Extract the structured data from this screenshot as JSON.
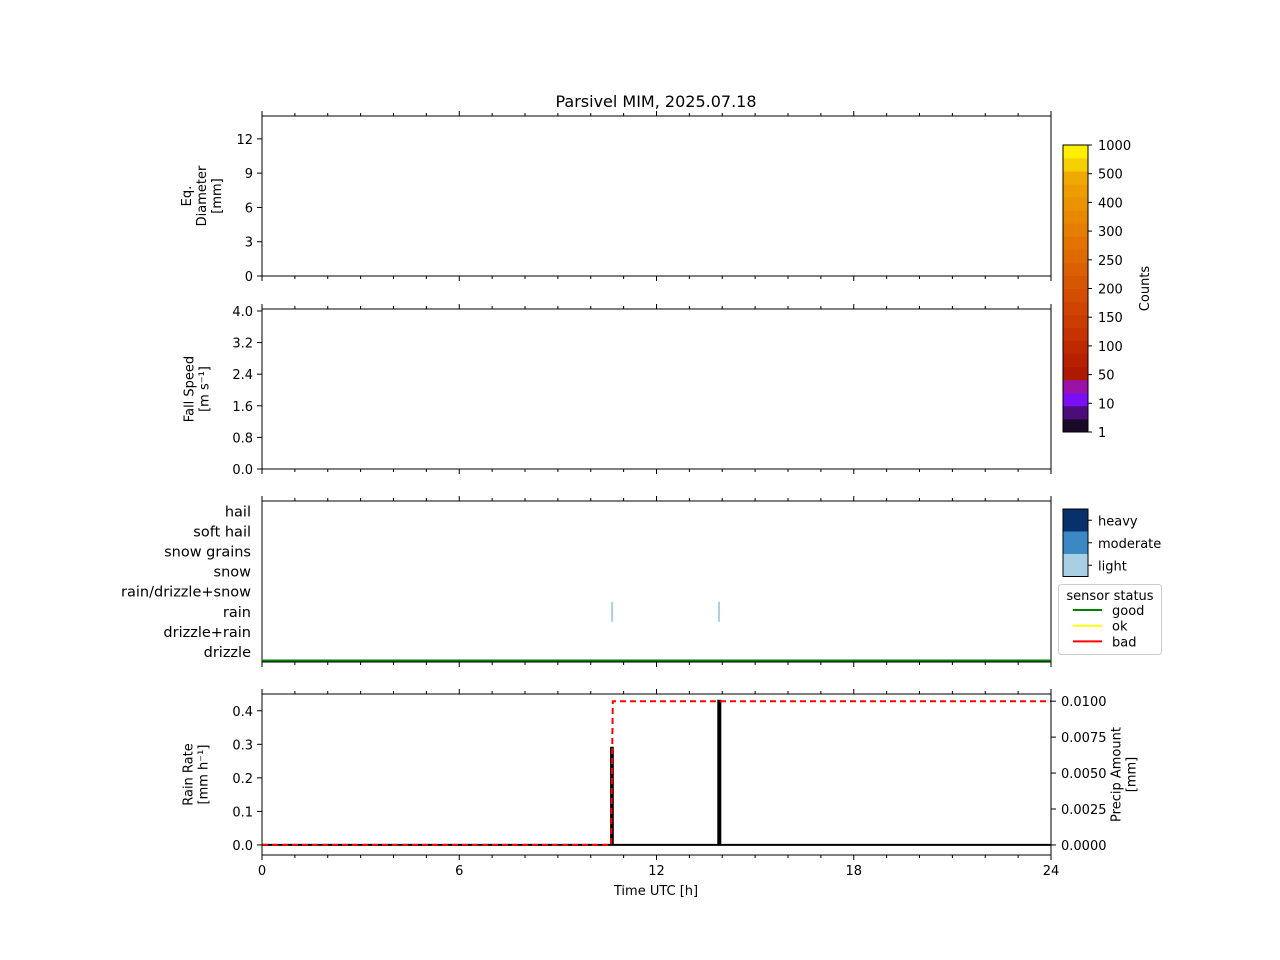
{
  "chart_data": {
    "title": "Parsivel MIM, 2025.07.18",
    "x_axis": {
      "label": "Time UTC [h]",
      "range": [
        0,
        24
      ],
      "ticks": [
        0,
        6,
        12,
        18,
        24
      ],
      "minor_step": 1
    },
    "panels": [
      {
        "id": "diameter",
        "type": "heatmap",
        "ylabel_lines": [
          "Eq.",
          "Diameter",
          "[mm]"
        ],
        "ylim": [
          0,
          14
        ],
        "yticks": [
          0,
          3,
          6,
          9,
          12
        ],
        "values": []
      },
      {
        "id": "fall_speed",
        "type": "heatmap",
        "ylabel_lines": [
          "Fall Speed",
          "[m s⁻¹]"
        ],
        "ylim": [
          0,
          4.05
        ],
        "yticks": [
          "0.0",
          "0.8",
          "1.6",
          "2.4",
          "3.2",
          "4.0"
        ],
        "values": []
      },
      {
        "id": "precip_type",
        "type": "category",
        "categories": [
          "drizzle",
          "drizzle+rain",
          "rain",
          "rain/drizzle+snow",
          "snow",
          "snow grains",
          "soft hail",
          "hail"
        ],
        "events": [
          {
            "time": 10.65,
            "category": "rain",
            "intensity": "light"
          },
          {
            "time": 13.9,
            "category": "rain",
            "intensity": "light"
          }
        ],
        "sensor_status": [
          {
            "from": 0,
            "to": 24,
            "status": "good"
          }
        ]
      },
      {
        "id": "rain",
        "type": "line",
        "ylabel_lines": [
          "Rain Rate",
          "[mm h⁻¹]"
        ],
        "ylim": [
          -0.03,
          0.45
        ],
        "yticks": [
          "0.0",
          "0.1",
          "0.2",
          "0.3",
          "0.4"
        ],
        "y2label_lines": [
          "Precip Amount",
          "[mm]"
        ],
        "y2lim": [
          -0.0007,
          0.0105
        ],
        "y2ticks": [
          "0.0000",
          "0.0025",
          "0.0050",
          "0.0075",
          "0.0100"
        ],
        "series": [
          {
            "id": "rate",
            "color": "#000000",
            "dash": "",
            "axis": "left",
            "x": [
              0,
              10.62,
              10.62,
              10.67,
              10.67,
              13.88,
              13.88,
              13.94,
              13.94,
              24
            ],
            "y": [
              0,
              0,
              0.29,
              0.29,
              0,
              0,
              0.43,
              0.43,
              0,
              0
            ]
          },
          {
            "id": "amount",
            "color": "#ff0000",
            "dash": "6,4",
            "axis": "right",
            "x": [
              0,
              10.62,
              10.67,
              24
            ],
            "y": [
              0,
              0,
              0.01,
              0.01
            ]
          }
        ]
      }
    ],
    "colorbar_counts": {
      "label": "Counts",
      "ticks": [
        "1",
        "10",
        "50",
        "100",
        "150",
        "200",
        "250",
        "300",
        "400",
        "500",
        "1000"
      ],
      "colors": [
        "#1a0a28",
        "#4b0d7a",
        "#7a0ff5",
        "#9b12a6",
        "#ae1a00",
        "#b62200",
        "#bd2a00",
        "#c43300",
        "#ca3c00",
        "#cf4500",
        "#d34e00",
        "#d75700",
        "#db6100",
        "#df6a00",
        "#e27300",
        "#e57d00",
        "#e88700",
        "#eb9200",
        "#ee9d00",
        "#f0a900",
        "#f5d000",
        "#ffee00"
      ]
    },
    "intensity_legend": {
      "items": [
        {
          "label": "heavy",
          "color": "#08306b"
        },
        {
          "label": "moderate",
          "color": "#3a88c4"
        },
        {
          "label": "light",
          "color": "#a9cfe5"
        }
      ]
    },
    "status_legend": {
      "title": "sensor status",
      "items": [
        {
          "label": "good",
          "color": "#008000"
        },
        {
          "label": "ok",
          "color": "#ffff00"
        },
        {
          "label": "bad",
          "color": "#ff0000"
        }
      ]
    }
  }
}
